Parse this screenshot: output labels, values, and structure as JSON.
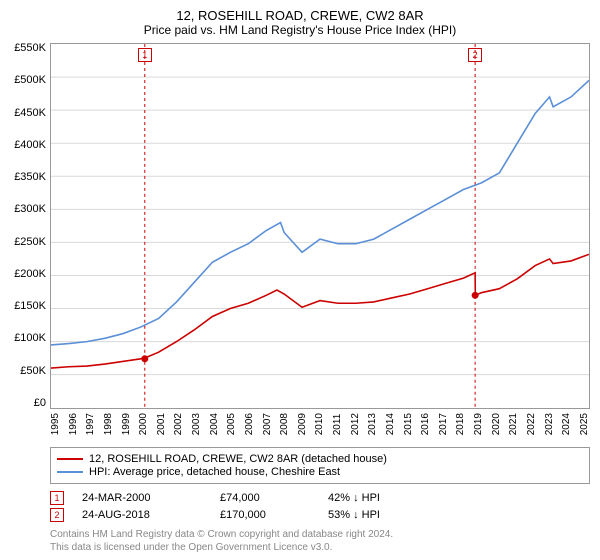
{
  "title": "12, ROSEHILL ROAD, CREWE, CW2 8AR",
  "subtitle": "Price paid vs. HM Land Registry's House Price Index (HPI)",
  "title_fontsize": 13,
  "subtitle_fontsize": 12,
  "chart": {
    "type": "line",
    "background_color": "#ffffff",
    "y_axis": {
      "min": 0,
      "max": 550000,
      "step": 50000,
      "ticks": [
        "£0",
        "£50K",
        "£100K",
        "£150K",
        "£200K",
        "£250K",
        "£300K",
        "£350K",
        "£400K",
        "£450K",
        "£500K",
        "£550K"
      ],
      "fontsize": 11
    },
    "x_axis": {
      "min": 1995,
      "max": 2025,
      "ticks": [
        "1995",
        "1996",
        "1997",
        "1998",
        "1999",
        "2000",
        "2001",
        "2002",
        "2003",
        "2004",
        "2005",
        "2006",
        "2007",
        "2008",
        "2009",
        "2010",
        "2011",
        "2012",
        "2013",
        "2014",
        "2015",
        "2016",
        "2017",
        "2018",
        "2019",
        "2020",
        "2021",
        "2022",
        "2023",
        "2024",
        "2025"
      ],
      "fontsize": 10
    },
    "grid_color": "#d9d9d9",
    "axis_color": "#999999",
    "series": [
      {
        "id": "property",
        "label": "12, ROSEHILL ROAD, CREWE, CW2 8AR (detached house)",
        "color": "#cc0000",
        "line_width": 1.6,
        "data": [
          [
            1995,
            60000
          ],
          [
            1996,
            62000
          ],
          [
            1997,
            63000
          ],
          [
            1998,
            66000
          ],
          [
            1999,
            70000
          ],
          [
            2000,
            74000
          ],
          [
            2000.3,
            76000
          ],
          [
            2001,
            84000
          ],
          [
            2002,
            100000
          ],
          [
            2003,
            118000
          ],
          [
            2004,
            138000
          ],
          [
            2005,
            150000
          ],
          [
            2006,
            158000
          ],
          [
            2007,
            170000
          ],
          [
            2007.6,
            178000
          ],
          [
            2008,
            172000
          ],
          [
            2009,
            152000
          ],
          [
            2010,
            162000
          ],
          [
            2011,
            158000
          ],
          [
            2012,
            158000
          ],
          [
            2013,
            160000
          ],
          [
            2014,
            166000
          ],
          [
            2015,
            172000
          ],
          [
            2016,
            180000
          ],
          [
            2017,
            188000
          ],
          [
            2018,
            196000
          ],
          [
            2018.65,
            204000
          ],
          [
            2018.66,
            170000
          ],
          [
            2019,
            174000
          ],
          [
            2020,
            180000
          ],
          [
            2021,
            195000
          ],
          [
            2022,
            215000
          ],
          [
            2022.8,
            225000
          ],
          [
            2023,
            218000
          ],
          [
            2024,
            222000
          ],
          [
            2025,
            232000
          ]
        ]
      },
      {
        "id": "hpi",
        "label": "HPI: Average price, detached house, Cheshire East",
        "color": "#5b8fd6",
        "line_width": 1.6,
        "data": [
          [
            1995,
            95000
          ],
          [
            1996,
            97000
          ],
          [
            1997,
            100000
          ],
          [
            1998,
            105000
          ],
          [
            1999,
            112000
          ],
          [
            2000,
            122000
          ],
          [
            2001,
            135000
          ],
          [
            2002,
            160000
          ],
          [
            2003,
            190000
          ],
          [
            2004,
            220000
          ],
          [
            2005,
            235000
          ],
          [
            2006,
            248000
          ],
          [
            2007,
            268000
          ],
          [
            2007.8,
            280000
          ],
          [
            2008,
            265000
          ],
          [
            2009,
            235000
          ],
          [
            2010,
            255000
          ],
          [
            2011,
            248000
          ],
          [
            2012,
            248000
          ],
          [
            2013,
            255000
          ],
          [
            2014,
            270000
          ],
          [
            2015,
            285000
          ],
          [
            2016,
            300000
          ],
          [
            2017,
            315000
          ],
          [
            2018,
            330000
          ],
          [
            2019,
            340000
          ],
          [
            2020,
            355000
          ],
          [
            2021,
            400000
          ],
          [
            2022,
            445000
          ],
          [
            2022.8,
            470000
          ],
          [
            2023,
            455000
          ],
          [
            2024,
            470000
          ],
          [
            2025,
            495000
          ]
        ]
      }
    ],
    "events": [
      {
        "n": "1",
        "year": 2000.23,
        "dot_y": 74000,
        "color": "#cc0000"
      },
      {
        "n": "2",
        "year": 2018.65,
        "dot_y": 170000,
        "color": "#cc0000"
      }
    ]
  },
  "legend": {
    "items": [
      {
        "color": "#cc0000",
        "label": "12, ROSEHILL ROAD, CREWE, CW2 8AR (detached house)"
      },
      {
        "color": "#5b8fd6",
        "label": "HPI: Average price, detached house, Cheshire East"
      }
    ],
    "fontsize": 11
  },
  "sales": [
    {
      "n": "1",
      "date": "24-MAR-2000",
      "price": "£74,000",
      "delta": "42% ↓ HPI",
      "border_color": "#cc0000"
    },
    {
      "n": "2",
      "date": "24-AUG-2018",
      "price": "£170,000",
      "delta": "53% ↓ HPI",
      "border_color": "#cc0000"
    }
  ],
  "sales_fontsize": 11,
  "footer": {
    "line1": "Contains HM Land Registry data © Crown copyright and database right 2024.",
    "line2": "This data is licensed under the Open Government Licence v3.0.",
    "fontsize": 10
  }
}
